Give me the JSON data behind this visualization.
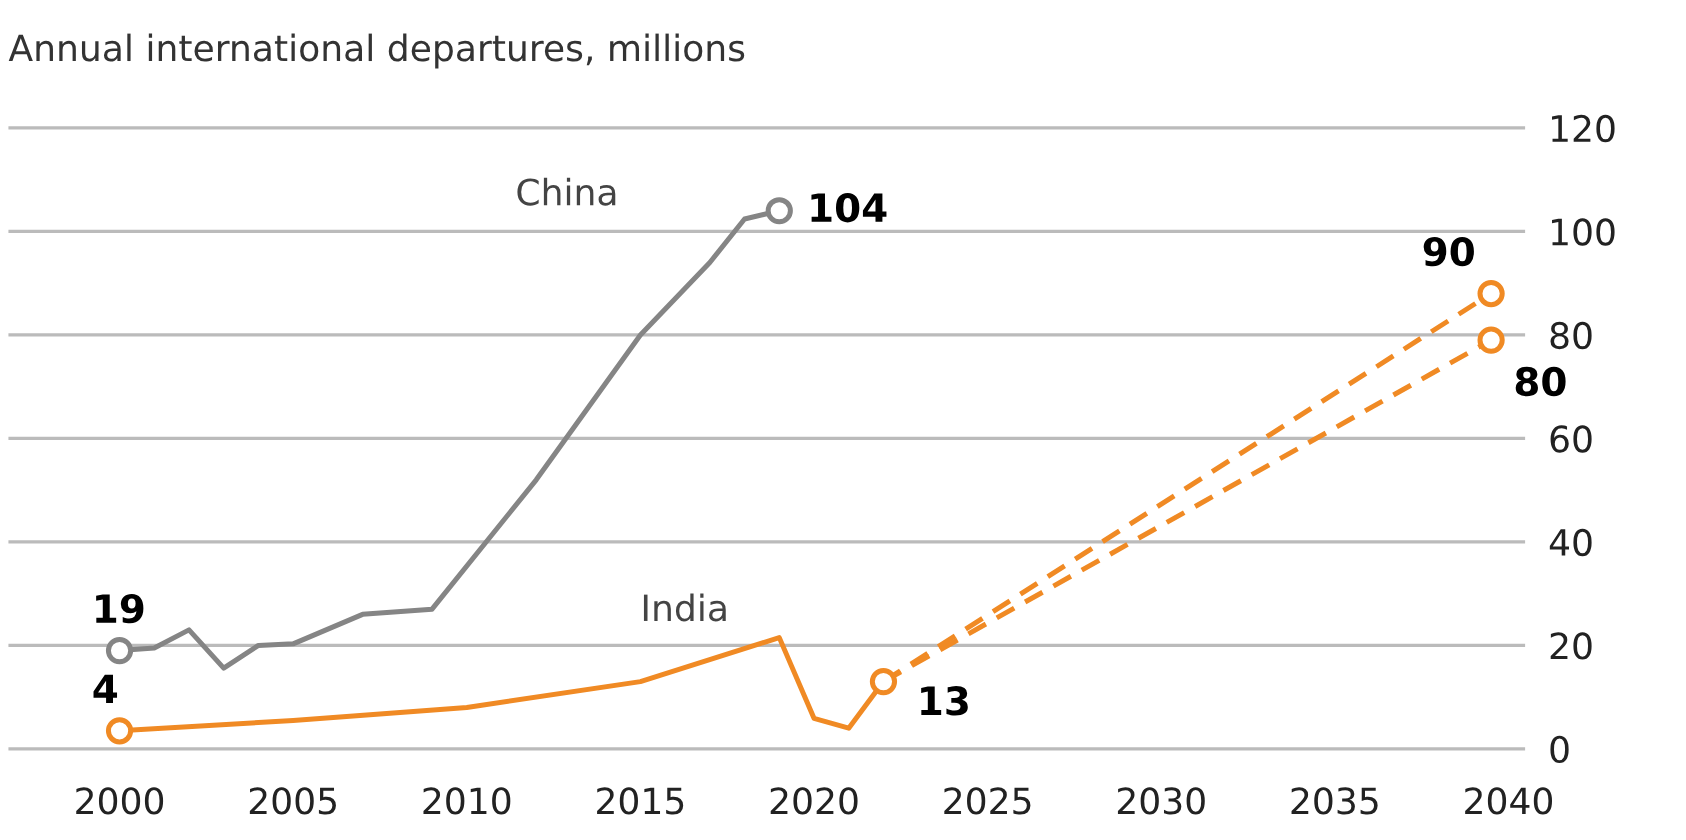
{
  "chart_data": {
    "type": "line",
    "title": "Annual international departures, millions",
    "series": [
      {
        "name": "China",
        "color": "#858585",
        "x": [
          2000,
          2001,
          2002,
          2003,
          2004,
          2005,
          2007,
          2009,
          2012,
          2015,
          2017,
          2018,
          2019
        ],
        "values": [
          19,
          19.5,
          23,
          15.6,
          20,
          20.3,
          26,
          27,
          52,
          80,
          94,
          102.4,
          104
        ]
      },
      {
        "name": "India",
        "color": "#f08a24",
        "x": [
          2000,
          2005,
          2010,
          2015,
          2019,
          2020,
          2021,
          2022
        ],
        "values": [
          3.5,
          5.5,
          8,
          13,
          21.5,
          5.9,
          4,
          13
        ]
      },
      {
        "color": "#f08a24",
        "line_style": "dashed",
        "x": [
          2022,
          2039.5
        ],
        "values": [
          13,
          88
        ]
      },
      {
        "color": "#f08a24",
        "line_style": "dashed",
        "x": [
          2022,
          2039.5
        ],
        "values": [
          13,
          79
        ]
      }
    ],
    "annotations": [
      {
        "text": "104",
        "x": 2019,
        "y": 104
      },
      {
        "text": "19",
        "x": 2000,
        "y": 19
      },
      {
        "text": "4",
        "x": 2000,
        "y": 3.5
      },
      {
        "text": "13",
        "x": 2022,
        "y": 13
      },
      {
        "text": "90",
        "x": 2039.5,
        "y": 88
      },
      {
        "text": "80",
        "x": 2039.5,
        "y": 79
      }
    ],
    "xlim": [
      1996.8,
      2040.5
    ],
    "xticks": [
      2000,
      2005,
      2010,
      2015,
      2020,
      2025,
      2030,
      2035,
      2040
    ],
    "ylim": [
      -3,
      122
    ],
    "yticks": [
      0,
      20,
      40,
      60,
      80,
      100,
      120
    ],
    "grid": "y",
    "line_style": "solid",
    "legend": false
  }
}
